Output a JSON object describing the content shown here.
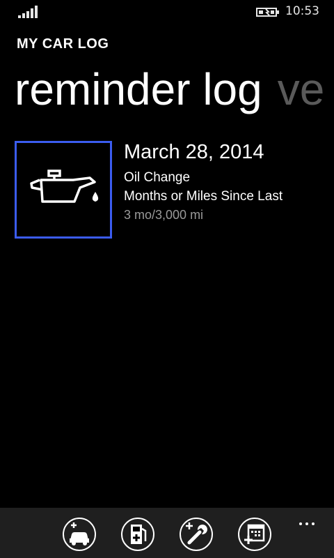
{
  "status_bar": {
    "time": "10:53",
    "signal_icon": "signal-bars-icon",
    "battery_icon": "battery-charging-icon"
  },
  "app": {
    "title": "MY CAR LOG"
  },
  "pivot": {
    "active": "reminder log",
    "next_partial": "ve"
  },
  "reminders": [
    {
      "date": "March 28, 2014",
      "type": "Oil Change",
      "mode": "Months or Miles Since Last",
      "interval": "3 mo/3,000 mi",
      "icon": "oil-can-icon",
      "tile_border_color": "#3b5cf0"
    }
  ],
  "app_bar": {
    "buttons": [
      {
        "name": "add-vehicle-button",
        "icon": "add-car-icon"
      },
      {
        "name": "add-fuel-button",
        "icon": "add-fuel-pump-icon"
      },
      {
        "name": "add-service-button",
        "icon": "add-wrench-icon"
      },
      {
        "name": "add-reminder-button",
        "icon": "add-calendar-icon"
      }
    ],
    "more_icon": "ellipsis-icon",
    "background": "#1f1f1f"
  }
}
